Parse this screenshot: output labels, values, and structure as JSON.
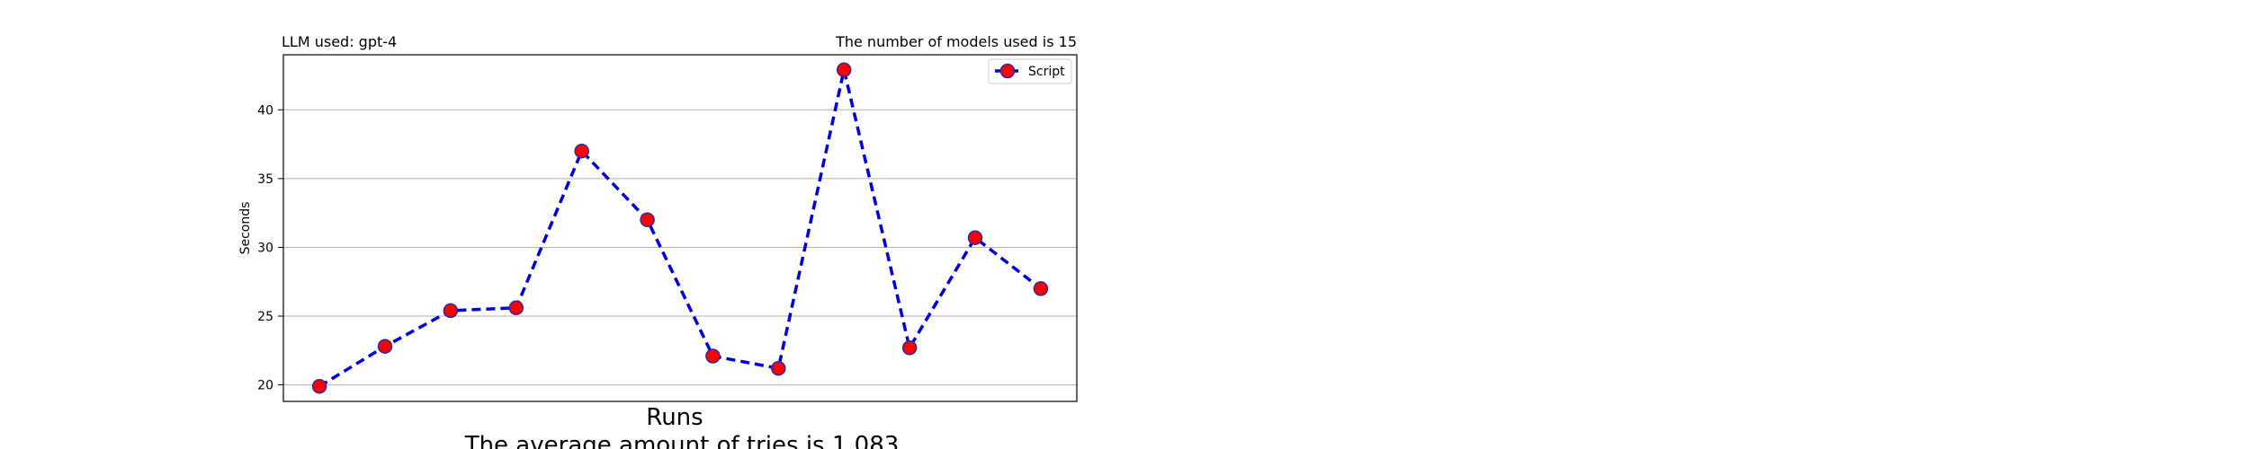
{
  "chart_data": {
    "type": "line",
    "title_left": "LLM used: gpt-4",
    "title_right": "The number of models used is 15",
    "xlabel": "Runs",
    "ylabel": "Seconds",
    "subtitle_bottom": "The average amount of tries is 1.083",
    "x": [
      1,
      2,
      3,
      4,
      5,
      6,
      7,
      8,
      9,
      10,
      11,
      12
    ],
    "series": [
      {
        "name": "Script",
        "values": [
          19.9,
          22.8,
          25.4,
          25.6,
          37.0,
          32.0,
          22.1,
          21.2,
          42.9,
          22.7,
          30.7,
          27.0
        ],
        "line_color": "#0000dd",
        "line_style": "dashed",
        "marker_fill": "#ff0000",
        "marker_edge": "#2a2aa0"
      }
    ],
    "yticks": [
      20,
      25,
      30,
      35,
      40
    ],
    "ylim": [
      18.8,
      44.0
    ],
    "xticks_visible": false,
    "grid": "horizontal",
    "legend_position": "top-right"
  }
}
